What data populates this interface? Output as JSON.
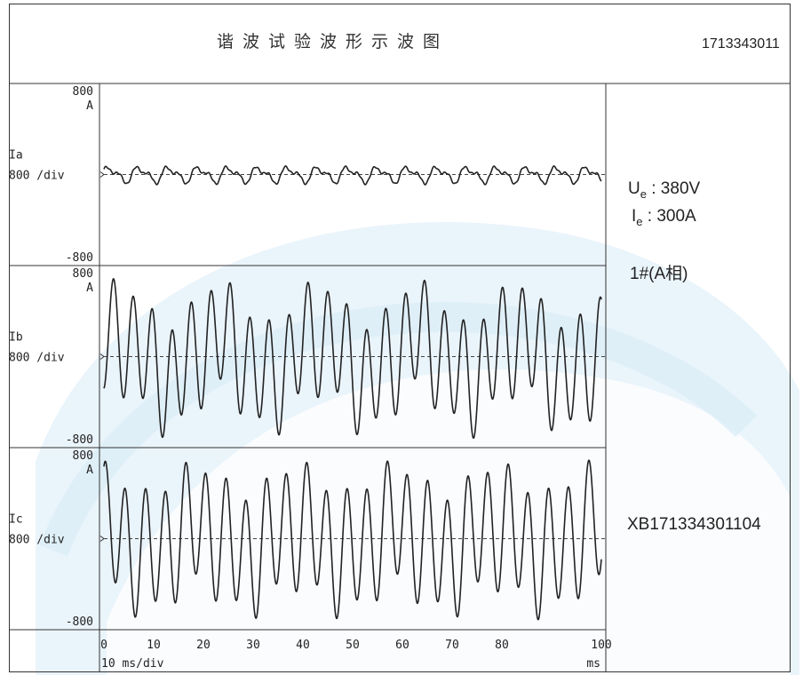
{
  "header": {
    "title": "谐波试验波形示波图",
    "report_no": "1713343011"
  },
  "info": {
    "ue_symbol": "U",
    "ue_sub": "e",
    "ue_value": " : 380V",
    "ie_symbol": "I",
    "ie_sub": "e",
    "ie_value": " : 300A",
    "phase": "1#(A相)",
    "serial": "XB171334301104"
  },
  "colors": {
    "trace": "#222222",
    "watermark": "#e8f3fb"
  },
  "chart_data": {
    "type": "line",
    "x_unit_label": "ms",
    "x_scale_label": "10 ms/div",
    "xlim": [
      0,
      100
    ],
    "x_ticks": [
      0,
      10,
      20,
      30,
      40,
      50,
      60,
      70,
      80,
      100
    ],
    "y_unit_label": "A",
    "channels": [
      {
        "name": "Ia",
        "scale_label": "800 /div",
        "ylim": [
          -800,
          800
        ],
        "y_top_label": "800",
        "y_bottom_label": "-800",
        "components": [
          {
            "amp": 60,
            "period_ms": 6.0,
            "phase": 0.3
          },
          {
            "amp": 35,
            "period_ms": 3.0,
            "phase": 1.1
          },
          {
            "amp": 8,
            "period_ms": 1.1,
            "phase": 0.2
          }
        ]
      },
      {
        "name": "Ib",
        "scale_label": "800 /div",
        "ylim": [
          -800,
          800
        ],
        "y_top_label": "800",
        "y_bottom_label": "-800",
        "components": [
          {
            "amp": 500,
            "period_ms": 3.91,
            "phase": -1.57
          },
          {
            "amp": 200,
            "period_ms": 20.0,
            "phase": 0.6
          },
          {
            "amp": 100,
            "period_ms": 7.8,
            "phase": 1.0
          }
        ]
      },
      {
        "name": "Ic",
        "scale_label": "800 /div",
        "ylim": [
          -800,
          800
        ],
        "y_top_label": "800",
        "y_bottom_label": "-800",
        "components": [
          {
            "amp": 560,
            "period_ms": 4.05,
            "phase": 1.2
          },
          {
            "amp": 140,
            "period_ms": 20.0,
            "phase": 2.0
          },
          {
            "amp": 100,
            "period_ms": 8.1,
            "phase": 0.4
          }
        ]
      }
    ]
  }
}
